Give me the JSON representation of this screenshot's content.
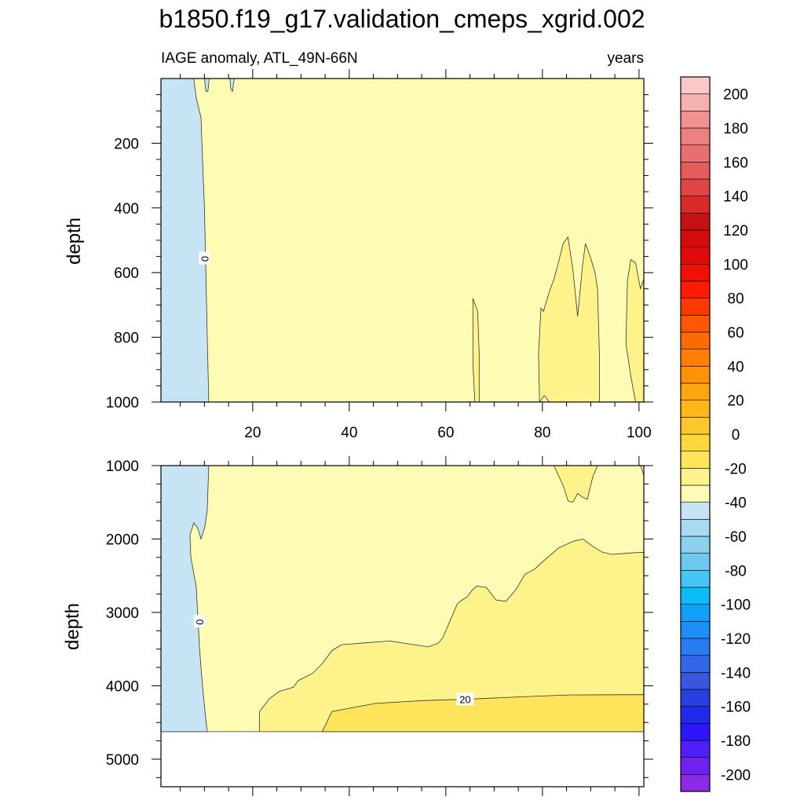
{
  "title": "b1850.f19_g17.validation_cmeps_xgrid.002",
  "colors": {
    "land_fill": "#ffffff",
    "contour_line": "#333333",
    "neg_band": "#c6e4f4",
    "band_0_10": "#fefbb4",
    "band_10_20": "#fef38a",
    "band_20_30": "#fee45a"
  },
  "chart_data": [
    {
      "type": "contour",
      "panel": "upper",
      "subtitle_left": "IAGE anomaly, ATL_49N-66N",
      "subtitle_right": "years",
      "ylabel": "depth",
      "xlabel": "",
      "xlim": [
        1,
        101
      ],
      "ylim": [
        1000,
        0
      ],
      "x_ticks": [
        20,
        40,
        60,
        80,
        100
      ],
      "x_tick_labels": [
        "20",
        "40",
        "60",
        "80",
        "100"
      ],
      "y_ticks": [
        200,
        400,
        600,
        800,
        1000
      ],
      "y_tick_labels": [
        "200",
        "400",
        "600",
        "800",
        "1000"
      ],
      "contour_labels": [
        {
          "text": "0",
          "x": 10,
          "y": 555
        }
      ],
      "regions": [
        {
          "level": "0 to 10",
          "color_key": "band_0_10",
          "polygon": [
            [
              1,
              0
            ],
            [
              101,
              0
            ],
            [
              101,
              1000
            ],
            [
              1,
              1000
            ]
          ]
        },
        {
          "level": "-10 to 0",
          "color_key": "neg_band",
          "polygon": [
            [
              1,
              0
            ],
            [
              7.8,
              0
            ],
            [
              8.3,
              60
            ],
            [
              9.3,
              120
            ],
            [
              9.6,
              250
            ],
            [
              10,
              400
            ],
            [
              10.3,
              600
            ],
            [
              10.6,
              800
            ],
            [
              10.9,
              1000
            ],
            [
              1,
              1000
            ]
          ]
        },
        {
          "level": "-10 to 0",
          "color_key": "neg_band",
          "polygon": [
            [
              10,
              0
            ],
            [
              11,
              0
            ],
            [
              10.7,
              40
            ],
            [
              10.3,
              40
            ]
          ]
        },
        {
          "level": "-10 to 0",
          "color_key": "neg_band",
          "polygon": [
            [
              15.3,
              0
            ],
            [
              16.2,
              0
            ],
            [
              15.8,
              40
            ],
            [
              15.4,
              30
            ]
          ]
        },
        {
          "level": "10 to 20",
          "color_key": "band_10_20",
          "polygon": [
            [
              65.6,
              680
            ],
            [
              66.6,
              720
            ],
            [
              66.9,
              850
            ],
            [
              66.9,
              1000
            ],
            [
              66,
              1000
            ],
            [
              65.6,
              880
            ]
          ]
        },
        {
          "level": "10 to 20",
          "color_key": "band_10_20",
          "polygon": [
            [
              79.7,
              710
            ],
            [
              80.2,
              720
            ],
            [
              80.8,
              690
            ],
            [
              81.4,
              660
            ],
            [
              82.4,
              620
            ],
            [
              83.3,
              570
            ],
            [
              84.3,
              510
            ],
            [
              85.3,
              490
            ],
            [
              86.3,
              590
            ],
            [
              87.3,
              735
            ],
            [
              88.3,
              580
            ],
            [
              88.9,
              510
            ],
            [
              89.9,
              550
            ],
            [
              90.9,
              600
            ],
            [
              91.4,
              650
            ],
            [
              91.8,
              850
            ],
            [
              91.8,
              1000
            ],
            [
              81.4,
              1000
            ],
            [
              80.4,
              980
            ],
            [
              79.4,
              1000
            ],
            [
              79.2,
              850
            ]
          ]
        },
        {
          "level": "10 to 20",
          "color_key": "band_10_20",
          "polygon": [
            [
              101,
              620
            ],
            [
              100.3,
              650
            ],
            [
              99.3,
              570
            ],
            [
              98.3,
              560
            ],
            [
              97.6,
              625
            ],
            [
              97.3,
              820
            ],
            [
              98.3,
              920
            ],
            [
              99.3,
              1000
            ],
            [
              101,
              1000
            ]
          ]
        }
      ]
    },
    {
      "type": "contour",
      "panel": "lower",
      "subtitle_left": "",
      "subtitle_right": "",
      "ylabel": "depth",
      "xlabel": "",
      "xlim": [
        1,
        101
      ],
      "ylim": [
        5375,
        1000
      ],
      "data_bottom": 4625,
      "x_ticks": [
        20,
        40,
        60,
        80,
        100
      ],
      "x_tick_labels": [
        "",
        "",
        "",
        "",
        ""
      ],
      "y_ticks": [
        1000,
        2000,
        3000,
        4000,
        5000
      ],
      "y_tick_labels": [
        "1000",
        "2000",
        "3000",
        "4000",
        "5000"
      ],
      "contour_labels": [
        {
          "text": "0",
          "x": 9,
          "y": 3120
        },
        {
          "text": "20",
          "x": 64,
          "y": 4180
        }
      ],
      "regions": [
        {
          "level": "0 to 10",
          "color_key": "band_0_10",
          "polygon": [
            [
              1,
              1000
            ],
            [
              101,
              1000
            ],
            [
              101,
              4625
            ],
            [
              1,
              4625
            ]
          ]
        },
        {
          "level": "-10 to 0",
          "color_key": "neg_band",
          "polygon": [
            [
              1,
              1000
            ],
            [
              10.9,
              1000
            ],
            [
              10.6,
              1600
            ],
            [
              10.1,
              1830
            ],
            [
              9.3,
              2000
            ],
            [
              8.6,
              1850
            ],
            [
              7.8,
              1780
            ],
            [
              7,
              1950
            ],
            [
              7.2,
              2250
            ],
            [
              8.3,
              2650
            ],
            [
              8.6,
              3000
            ],
            [
              9,
              3500
            ],
            [
              9.6,
              4000
            ],
            [
              10.2,
              4400
            ],
            [
              10.6,
              4625
            ],
            [
              1,
              4625
            ]
          ]
        },
        {
          "level": "10 to 20",
          "color_key": "band_10_20",
          "polygon": [
            [
              1,
              4625
            ],
            [
              21.4,
              4625
            ],
            [
              21.4,
              4350
            ],
            [
              23.4,
              4180
            ],
            [
              25.4,
              4080
            ],
            [
              28.4,
              4020
            ],
            [
              29.4,
              3930
            ],
            [
              32.4,
              3830
            ],
            [
              34.4,
              3700
            ],
            [
              36.4,
              3520
            ],
            [
              38.4,
              3440
            ],
            [
              42.4,
              3420
            ],
            [
              48.4,
              3390
            ],
            [
              53.4,
              3440
            ],
            [
              56.4,
              3470
            ],
            [
              58.4,
              3420
            ],
            [
              59.4,
              3340
            ],
            [
              62.4,
              2880
            ],
            [
              63.4,
              2830
            ],
            [
              64.4,
              2790
            ],
            [
              65.4,
              2700
            ],
            [
              66.4,
              2640
            ],
            [
              68.4,
              2660
            ],
            [
              70.4,
              2830
            ],
            [
              72.4,
              2850
            ],
            [
              74.4,
              2700
            ],
            [
              76.4,
              2480
            ],
            [
              78.4,
              2410
            ],
            [
              80.4,
              2290
            ],
            [
              83.4,
              2120
            ],
            [
              86.4,
              2030
            ],
            [
              88.4,
              2000
            ],
            [
              90.4,
              2100
            ],
            [
              92.4,
              2180
            ],
            [
              94.4,
              2210
            ],
            [
              96.4,
              2200
            ],
            [
              98.4,
              2190
            ],
            [
              101,
              2180
            ],
            [
              101,
              4625
            ]
          ]
        },
        {
          "level": "10 to 20",
          "color_key": "band_10_20",
          "polygon": [
            [
              80.4,
              1000
            ],
            [
              82.4,
              1000
            ],
            [
              84.4,
              1290
            ],
            [
              85.3,
              1480
            ],
            [
              86.3,
              1500
            ],
            [
              87.3,
              1380
            ],
            [
              88.3,
              1430
            ],
            [
              89.3,
              1460
            ],
            [
              90.4,
              1160
            ],
            [
              91.4,
              1000
            ]
          ]
        },
        {
          "level": "10 to 20",
          "color_key": "band_10_20",
          "polygon": [
            [
              101,
              1000
            ],
            [
              100.3,
              1000
            ],
            [
              101,
              1130
            ]
          ]
        },
        {
          "level": "20 to 30",
          "color_key": "band_20_30",
          "polygon": [
            [
              34.4,
              4625
            ],
            [
              36.4,
              4350
            ],
            [
              45.4,
              4240
            ],
            [
              55.4,
              4200
            ],
            [
              65.4,
              4180
            ],
            [
              75.4,
              4150
            ],
            [
              85.4,
              4125
            ],
            [
              101,
              4120
            ],
            [
              101,
              4625
            ]
          ]
        }
      ]
    },
    {
      "type": "colorbar",
      "range": [
        -210,
        210
      ],
      "step": 10,
      "labels": [
        "200",
        "180",
        "160",
        "140",
        "120",
        "100",
        "80",
        "60",
        "40",
        "20",
        "0",
        "-20",
        "-40",
        "-60",
        "-80",
        "-100",
        "-120",
        "-140",
        "-160",
        "-180",
        "-200"
      ],
      "label_values": [
        200,
        180,
        160,
        140,
        120,
        100,
        80,
        60,
        40,
        20,
        0,
        -20,
        -40,
        -60,
        -80,
        -100,
        -120,
        -140,
        -160,
        -180,
        -200
      ],
      "colors": [
        "#8c2ae6",
        "#6e22f0",
        "#4f1ff6",
        "#2d16fb",
        "#1f2aed",
        "#2a3fe0",
        "#3a55de",
        "#3068e8",
        "#2a7df0",
        "#1e8ff6",
        "#10a2fa",
        "#0bbcf8",
        "#45c6f4",
        "#6dc8f0",
        "#8cd0ee",
        "#a7d9ef",
        "#c6e4f4",
        "#fefbb4",
        "#fef38a",
        "#fee45a",
        "#fed63e",
        "#fec82a",
        "#feb71a",
        "#fea610",
        "#fe9309",
        "#fe7e06",
        "#fe6a04",
        "#fe5702",
        "#fe3a01",
        "#fd1c00",
        "#f00f00",
        "#e10a0a",
        "#d40c0c",
        "#c51212",
        "#d92a2a",
        "#e04545",
        "#e45c5c",
        "#e86f6f",
        "#ec7f7f",
        "#f29191",
        "#f7b0b0",
        "#fcc7c7"
      ]
    }
  ]
}
